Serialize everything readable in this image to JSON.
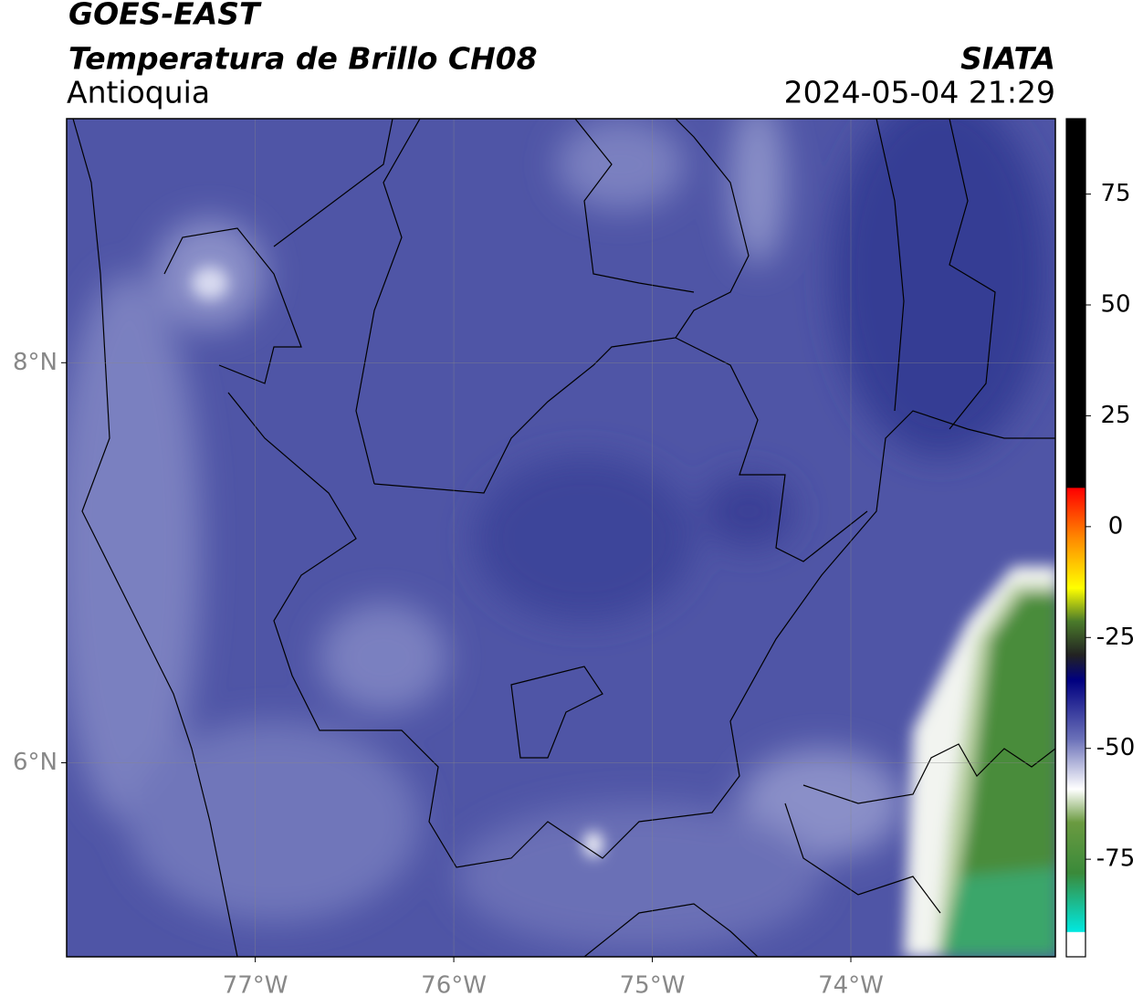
{
  "chart_data": {
    "type": "map",
    "title": "GOES-EAST",
    "subtitle": "Temperatura de Brillo CH08",
    "region": "Antioquia",
    "source": "SIATA",
    "datetime": "2024-05-04 21:29",
    "xlim": [
      -77.95,
      -72.97
    ],
    "ylim": [
      5.03,
      9.22
    ],
    "xticks": [
      {
        "value": -77,
        "label": "77°W"
      },
      {
        "value": -76,
        "label": "76°W"
      },
      {
        "value": -75,
        "label": "75°W"
      },
      {
        "value": -74,
        "label": "74°W"
      }
    ],
    "yticks": [
      {
        "value": 8,
        "label": "8°N"
      },
      {
        "value": 6,
        "label": "6°N"
      }
    ],
    "grid": true,
    "colorbar": {
      "lim": [
        -97,
        92
      ],
      "ticks": [
        75,
        50,
        25,
        0,
        -25,
        -50,
        -75
      ]
    }
  }
}
